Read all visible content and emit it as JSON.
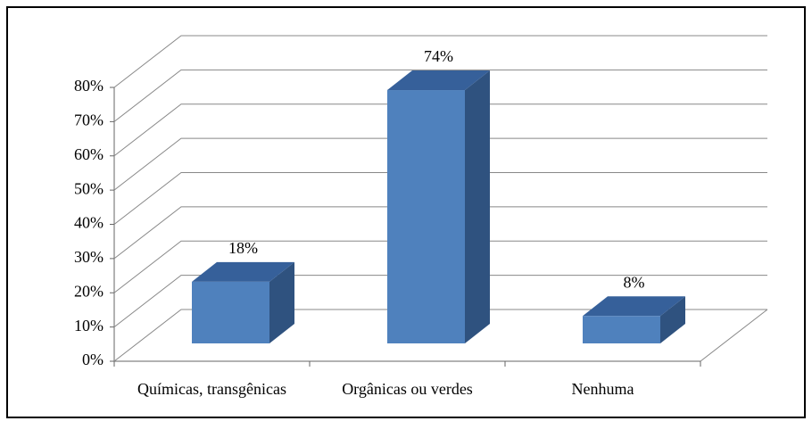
{
  "chart_data": {
    "type": "bar3d",
    "categories": [
      "Químicas, transgênicas",
      "Orgânicas ou verdes",
      "Nenhuma"
    ],
    "values": [
      18,
      74,
      8
    ],
    "value_labels": [
      "18%",
      "74%",
      "8%"
    ],
    "color": "#4f81bd",
    "ylim": [
      0,
      80
    ],
    "yticks": [
      {
        "value": 0,
        "label": "0%"
      },
      {
        "value": 10,
        "label": "10%"
      },
      {
        "value": 20,
        "label": "20%"
      },
      {
        "value": 30,
        "label": "30%"
      },
      {
        "value": 40,
        "label": "40%"
      },
      {
        "value": 50,
        "label": "50%"
      },
      {
        "value": 60,
        "label": "60%"
      },
      {
        "value": 70,
        "label": "70%"
      },
      {
        "value": 80,
        "label": "80%"
      }
    ],
    "grid": true
  }
}
